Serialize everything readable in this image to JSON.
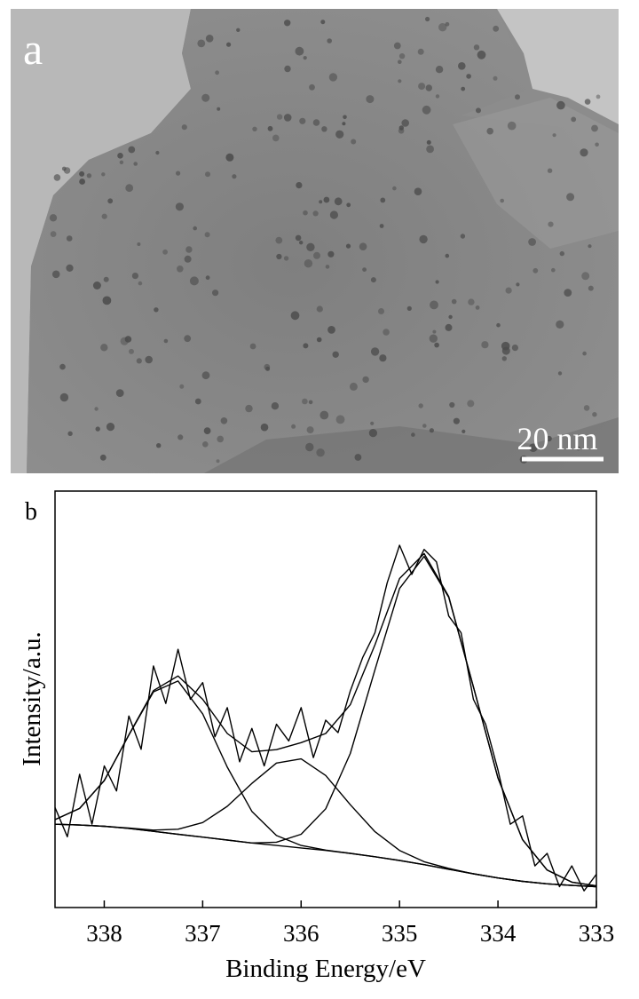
{
  "image_panel": {
    "panel_label": "a",
    "scale_bar": "20 nm"
  },
  "chart_data": {
    "type": "line",
    "panel_label": "b",
    "x_label": "Binding Energy/eV",
    "y_label": "Intensity/a.u.",
    "xlim": [
      338.5,
      333
    ],
    "xticks": [
      338,
      337,
      336,
      335,
      334,
      333
    ],
    "ylim": [
      0,
      100
    ],
    "x": [
      338.5,
      338.25,
      338,
      337.75,
      337.5,
      337.25,
      337,
      336.75,
      336.5,
      336.25,
      336,
      335.75,
      335.5,
      335.25,
      335,
      334.75,
      334.5,
      334.25,
      334,
      333.75,
      333.5,
      333.25,
      333
    ],
    "series": [
      {
        "color": "#000000",
        "x": [
          338.5,
          338.375,
          338.25,
          338.125,
          338,
          337.875,
          337.75,
          337.625,
          337.5,
          337.375,
          337.25,
          337.125,
          337,
          336.875,
          336.75,
          336.625,
          336.5,
          336.375,
          336.25,
          336.125,
          336,
          335.875,
          335.75,
          335.625,
          335.5,
          335.375,
          335.25,
          335.125,
          335,
          334.875,
          334.75,
          334.625,
          334.5,
          334.375,
          334.25,
          334.125,
          334,
          333.875,
          333.75,
          333.625,
          333.5,
          333.375,
          333.25,
          333.125,
          333
        ],
        "values": [
          24,
          17,
          32,
          20,
          34,
          28,
          46,
          38,
          58,
          49,
          62,
          50,
          54,
          41,
          48,
          35,
          43,
          34,
          44,
          40,
          48,
          36,
          45,
          42,
          52,
          60,
          66,
          78,
          87,
          80,
          86,
          83,
          70,
          66,
          50,
          44,
          33,
          20,
          22,
          10,
          13,
          5,
          10,
          4,
          8
        ]
      },
      {
        "color": "#000000",
        "values": [
          21.1,
          23.8,
          30.5,
          41.5,
          52.1,
          55.6,
          50.0,
          41.8,
          37.4,
          37.9,
          39.6,
          41.8,
          48.7,
          63.1,
          79.0,
          85.0,
          74.7,
          53.0,
          31.1,
          16.3,
          9.0,
          6.1,
          5.2
        ]
      },
      {
        "color": "#000000",
        "values": [
          21.1,
          23.8,
          30.5,
          41.4,
          51.8,
          54.4,
          46.5,
          33.7,
          23.1,
          17.3,
          14.9,
          13.8,
          13.0,
          12.2,
          11.3,
          10.3,
          9.2,
          8.1,
          7.1,
          6.3,
          5.7,
          5.3,
          5.0
        ]
      },
      {
        "color": "#000000",
        "values": [
          20.0,
          19.8,
          19.5,
          19.1,
          18.6,
          18.8,
          20.4,
          24.3,
          29.8,
          34.7,
          35.7,
          31.7,
          24.7,
          18.2,
          13.7,
          11.0,
          9.4,
          8.1,
          7.1,
          6.3,
          5.7,
          5.3,
          5.0
        ]
      },
      {
        "color": "#000000",
        "values": [
          20.0,
          19.8,
          19.5,
          19.0,
          18.3,
          17.6,
          16.9,
          16.2,
          15.5,
          15.7,
          17.6,
          23.7,
          37.0,
          57.1,
          76.6,
          84.3,
          74.5,
          53.0,
          31.1,
          16.3,
          9.0,
          6.1,
          5.2
        ]
      },
      {
        "color": "#000000",
        "values": [
          20.0,
          19.8,
          19.5,
          19.0,
          18.3,
          17.6,
          16.9,
          16.2,
          15.5,
          14.9,
          14.3,
          13.7,
          13.0,
          12.2,
          11.3,
          10.3,
          9.2,
          8.1,
          7.1,
          6.3,
          5.7,
          5.3,
          5.0
        ]
      }
    ]
  }
}
